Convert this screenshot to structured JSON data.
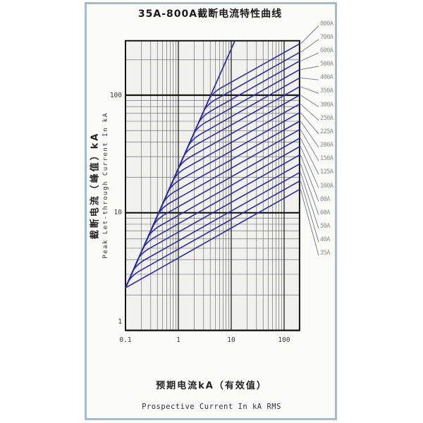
{
  "title": "35A-800A截断电流特性曲线",
  "frame": {
    "border_color": "#a2bdd2",
    "panel_bg": "#fbfbf8"
  },
  "y_axis": {
    "label_cn": "截断电流（峰值）kA",
    "label_en": "Peak Let-through Current In kA"
  },
  "x_axis": {
    "label_cn": "预期电流kA（有效值）",
    "label_en": "Prospective Current In kA RMS"
  },
  "chart_data": {
    "type": "line",
    "scale": "log-log",
    "title": "35A-800A截断电流特性曲线",
    "xlabel": "Prospective Current In kA RMS",
    "ylabel": "Peak Let-through Current In kA",
    "x_range": [
      0.1,
      196
    ],
    "y_range": [
      1,
      290
    ],
    "x_ticks": [
      "0.1",
      "1",
      "10",
      "100"
    ],
    "y_ticks": [
      "1",
      "10",
      "100"
    ],
    "grid": "log minor + major decades",
    "legend_position": "right leader-line labels",
    "start_point": [
      0.1,
      2.3
    ],
    "envelope_end": [
      11.7,
      290
    ],
    "colors": {
      "curve": "#2a2ab5",
      "leader": "#73738f",
      "label": "#8b8b8b",
      "grid_minor": "#606060",
      "grid_major": "#151515",
      "plot_bg": "#f1f1ee"
    },
    "series": [
      {
        "name": "800A",
        "branch": [
          4.25,
          104
        ],
        "end": [
          196,
          273
        ]
      },
      {
        "name": "700A",
        "branch": [
          3.4,
          83
        ],
        "end": [
          196,
          231
        ]
      },
      {
        "name": "600A",
        "branch": [
          2.73,
          66
        ],
        "end": [
          196,
          195
        ]
      },
      {
        "name": "500A",
        "branch": [
          2.19,
          53
        ],
        "end": [
          196,
          165
        ]
      },
      {
        "name": "400A",
        "branch": [
          1.75,
          42
        ],
        "end": [
          196,
          140
        ]
      },
      {
        "name": "350A",
        "branch": [
          1.41,
          34
        ],
        "end": [
          196,
          118
        ]
      },
      {
        "name": "300A",
        "branch": [
          1.13,
          27
        ],
        "end": [
          196,
          100
        ]
      },
      {
        "name": "250A",
        "branch": [
          0.91,
          21.6
        ],
        "end": [
          196,
          84
        ]
      },
      {
        "name": "225A",
        "branch": [
          0.73,
          17.3
        ],
        "end": [
          196,
          71
        ]
      },
      {
        "name": "200A",
        "branch": [
          0.59,
          13.8
        ],
        "end": [
          196,
          60
        ]
      },
      {
        "name": "150A",
        "branch": [
          0.47,
          11.0
        ],
        "end": [
          196,
          51
        ]
      },
      {
        "name": "125A",
        "branch": [
          0.38,
          8.8
        ],
        "end": [
          196,
          43
        ]
      },
      {
        "name": "100A",
        "branch": [
          0.3,
          7.0
        ],
        "end": [
          196,
          36.5
        ]
      },
      {
        "name": "80A",
        "branch": [
          0.24,
          5.6
        ],
        "end": [
          196,
          31
        ]
      },
      {
        "name": "60A",
        "branch": [
          0.19,
          4.5
        ],
        "end": [
          196,
          26
        ]
      },
      {
        "name": "50A",
        "branch": [
          0.155,
          3.6
        ],
        "end": [
          196,
          22
        ]
      },
      {
        "name": "40A",
        "branch": [
          0.125,
          2.9
        ],
        "end": [
          196,
          18.6
        ]
      },
      {
        "name": "35A",
        "branch": [
          0.1,
          2.3
        ],
        "end": [
          196,
          15.8
        ]
      }
    ]
  }
}
